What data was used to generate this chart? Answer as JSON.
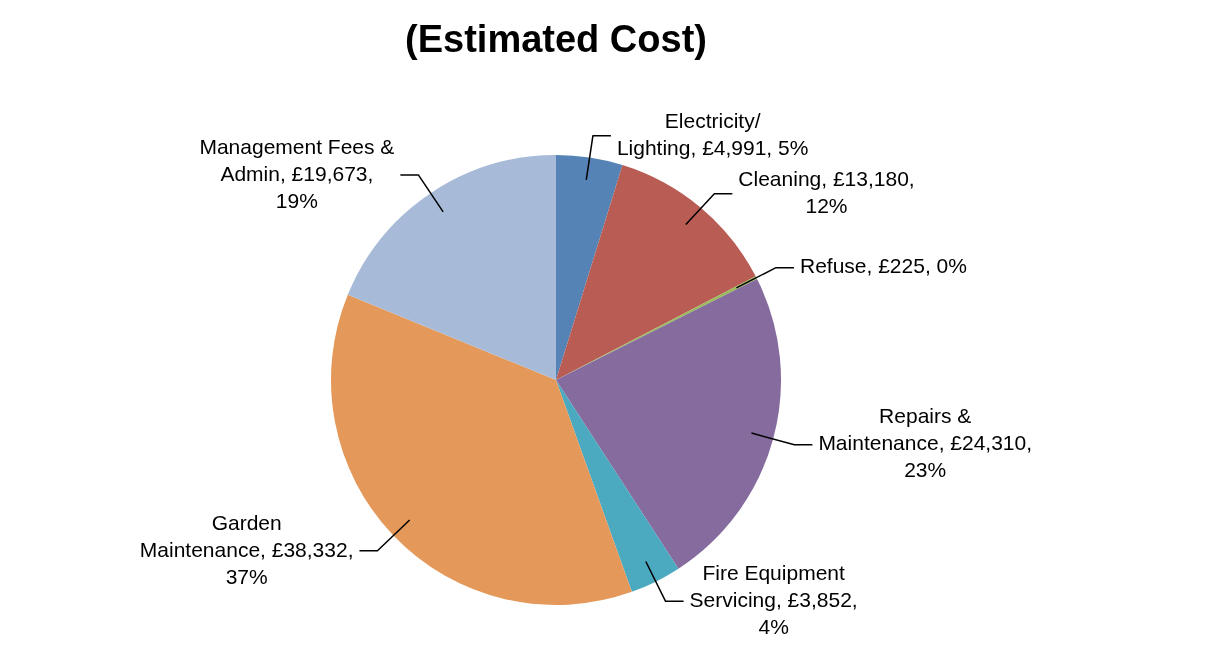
{
  "chart_data": {
    "type": "pie",
    "title": "(Estimated Cost)",
    "categories": [
      "Electricity/ Lighting",
      "Cleaning",
      "Refuse",
      "Repairs & Maintenance",
      "Fire Equipment Servicing",
      "Garden Maintenance",
      "Management Fees & Admin"
    ],
    "values": [
      4991,
      13180,
      225,
      24310,
      3852,
      38332,
      19673
    ],
    "value_labels": [
      "£4,991, 5%",
      "£13,180, 12%",
      "£225, 0%",
      "£24,310, 23%",
      "£3,852, 4%",
      "£38,332, 37%",
      "£19,673, 19%"
    ],
    "colors": [
      "#5583b5",
      "#b95c54",
      "#9bbb59",
      "#856b9e",
      "#4ba9c0",
      "#e4995a",
      "#a7bad8"
    ],
    "legend": false
  }
}
